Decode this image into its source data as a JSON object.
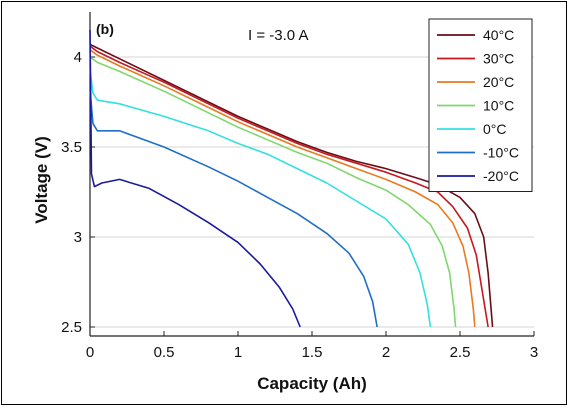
{
  "chart_data": {
    "type": "line",
    "panel_label": "(b)",
    "annotation": "I = -3.0 A",
    "xlabel": "Capacity (Ah)",
    "ylabel": "Voltage (V)",
    "xlim": [
      0,
      3
    ],
    "ylim": [
      2.45,
      4.25
    ],
    "xticks": [
      "0",
      "0.5",
      "1",
      "1.5",
      "2",
      "2.5",
      "3"
    ],
    "yticks": [
      "2.5",
      "3",
      "3.5",
      "4"
    ],
    "grid": "horizontal",
    "legend_position": "top-right",
    "series": [
      {
        "name": "40°C",
        "color": "#6b0e17",
        "points": [
          [
            0,
            4.07
          ],
          [
            0.05,
            4.05
          ],
          [
            0.2,
            3.99
          ],
          [
            0.5,
            3.87
          ],
          [
            0.8,
            3.75
          ],
          [
            1.0,
            3.67
          ],
          [
            1.2,
            3.6
          ],
          [
            1.4,
            3.53
          ],
          [
            1.6,
            3.47
          ],
          [
            1.8,
            3.42
          ],
          [
            2.0,
            3.38
          ],
          [
            2.2,
            3.33
          ],
          [
            2.35,
            3.29
          ],
          [
            2.5,
            3.22
          ],
          [
            2.6,
            3.13
          ],
          [
            2.66,
            3.0
          ],
          [
            2.69,
            2.8
          ],
          [
            2.71,
            2.6
          ],
          [
            2.72,
            2.5
          ]
        ]
      },
      {
        "name": "30°C",
        "color": "#c8171f",
        "points": [
          [
            0,
            4.06
          ],
          [
            0.05,
            4.03
          ],
          [
            0.2,
            3.97
          ],
          [
            0.5,
            3.86
          ],
          [
            0.8,
            3.74
          ],
          [
            1.0,
            3.66
          ],
          [
            1.2,
            3.59
          ],
          [
            1.4,
            3.52
          ],
          [
            1.6,
            3.46
          ],
          [
            1.8,
            3.41
          ],
          [
            2.0,
            3.36
          ],
          [
            2.2,
            3.3
          ],
          [
            2.35,
            3.25
          ],
          [
            2.45,
            3.17
          ],
          [
            2.55,
            3.05
          ],
          [
            2.61,
            2.9
          ],
          [
            2.65,
            2.7
          ],
          [
            2.68,
            2.55
          ],
          [
            2.69,
            2.5
          ]
        ]
      },
      {
        "name": "20°C",
        "color": "#e87a20",
        "points": [
          [
            0,
            4.04
          ],
          [
            0.05,
            4.01
          ],
          [
            0.2,
            3.95
          ],
          [
            0.5,
            3.84
          ],
          [
            0.8,
            3.72
          ],
          [
            1.0,
            3.64
          ],
          [
            1.2,
            3.57
          ],
          [
            1.4,
            3.5
          ],
          [
            1.6,
            3.44
          ],
          [
            1.8,
            3.38
          ],
          [
            2.0,
            3.32
          ],
          [
            2.2,
            3.25
          ],
          [
            2.35,
            3.18
          ],
          [
            2.45,
            3.08
          ],
          [
            2.52,
            2.95
          ],
          [
            2.56,
            2.8
          ],
          [
            2.59,
            2.6
          ],
          [
            2.6,
            2.5
          ]
        ]
      },
      {
        "name": "10°C",
        "color": "#7ed86e",
        "points": [
          [
            0,
            4.0
          ],
          [
            0.05,
            3.97
          ],
          [
            0.2,
            3.92
          ],
          [
            0.5,
            3.81
          ],
          [
            0.8,
            3.69
          ],
          [
            1.0,
            3.61
          ],
          [
            1.2,
            3.54
          ],
          [
            1.4,
            3.47
          ],
          [
            1.6,
            3.41
          ],
          [
            1.8,
            3.33
          ],
          [
            2.0,
            3.26
          ],
          [
            2.15,
            3.18
          ],
          [
            2.3,
            3.07
          ],
          [
            2.38,
            2.95
          ],
          [
            2.43,
            2.8
          ],
          [
            2.46,
            2.6
          ],
          [
            2.47,
            2.5
          ]
        ]
      },
      {
        "name": "0°C",
        "color": "#33e0e0",
        "points": [
          [
            0,
            3.93
          ],
          [
            0.02,
            3.8
          ],
          [
            0.05,
            3.76
          ],
          [
            0.2,
            3.74
          ],
          [
            0.5,
            3.67
          ],
          [
            0.8,
            3.59
          ],
          [
            1.0,
            3.52
          ],
          [
            1.2,
            3.46
          ],
          [
            1.4,
            3.38
          ],
          [
            1.6,
            3.3
          ],
          [
            1.8,
            3.2
          ],
          [
            2.0,
            3.1
          ],
          [
            2.15,
            2.96
          ],
          [
            2.23,
            2.8
          ],
          [
            2.28,
            2.62
          ],
          [
            2.3,
            2.5
          ]
        ]
      },
      {
        "name": "-10°C",
        "color": "#1f6fc8",
        "points": [
          [
            0,
            3.82
          ],
          [
            0.02,
            3.63
          ],
          [
            0.05,
            3.59
          ],
          [
            0.2,
            3.59
          ],
          [
            0.5,
            3.5
          ],
          [
            0.8,
            3.39
          ],
          [
            1.0,
            3.31
          ],
          [
            1.2,
            3.22
          ],
          [
            1.4,
            3.13
          ],
          [
            1.6,
            3.02
          ],
          [
            1.75,
            2.91
          ],
          [
            1.85,
            2.78
          ],
          [
            1.91,
            2.64
          ],
          [
            1.94,
            2.5
          ]
        ]
      },
      {
        "name": "-20°C",
        "color": "#1a1aa0",
        "points": [
          [
            0,
            4.15
          ],
          [
            0.01,
            3.35
          ],
          [
            0.03,
            3.28
          ],
          [
            0.08,
            3.3
          ],
          [
            0.2,
            3.32
          ],
          [
            0.4,
            3.27
          ],
          [
            0.6,
            3.18
          ],
          [
            0.8,
            3.08
          ],
          [
            1.0,
            2.97
          ],
          [
            1.15,
            2.85
          ],
          [
            1.28,
            2.72
          ],
          [
            1.37,
            2.6
          ],
          [
            1.42,
            2.5
          ]
        ]
      }
    ]
  }
}
